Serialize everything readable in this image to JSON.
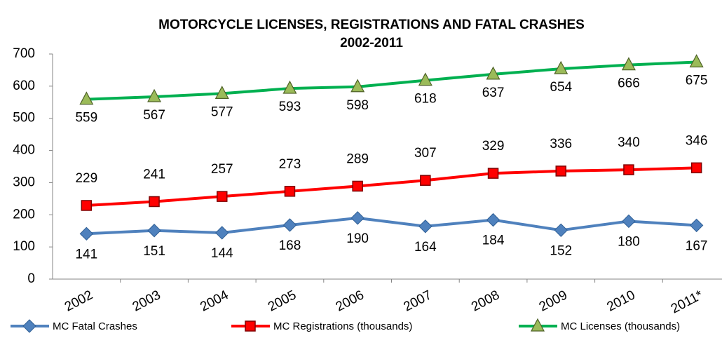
{
  "chart_data": {
    "type": "line",
    "title": "MOTORCYCLE LICENSES, REGISTRATIONS AND FATAL CRASHES",
    "subtitle": "2002-2011",
    "categories": [
      "2002",
      "2003",
      "2004",
      "2005",
      "2006",
      "2007",
      "2008",
      "2009",
      "2010",
      "2011*"
    ],
    "series": [
      {
        "name": "MC Fatal Crashes",
        "color": "#4f81bd",
        "values": [
          141,
          151,
          144,
          168,
          190,
          164,
          184,
          152,
          180,
          167
        ]
      },
      {
        "name": "MC Registrations (thousands)",
        "color": "#ff0000",
        "values": [
          229,
          241,
          257,
          273,
          289,
          307,
          329,
          336,
          340,
          346
        ]
      },
      {
        "name": "MC Licenses (thousands)",
        "color": "#00b050",
        "values": [
          559,
          567,
          577,
          593,
          598,
          618,
          637,
          654,
          666,
          675
        ]
      }
    ],
    "ylim": [
      0,
      700
    ],
    "yticks": [
      0,
      100,
      200,
      300,
      400,
      500,
      600,
      700
    ],
    "legend": "bottom"
  }
}
